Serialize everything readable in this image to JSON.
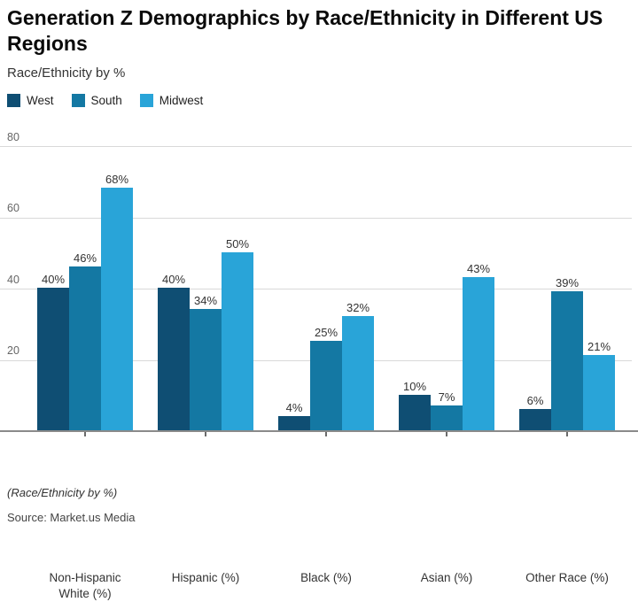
{
  "title": "Generation Z Demographics by Race/Ethnicity in Different US Regions",
  "subtitle": "Race/Ethnicity by %",
  "footnote": "(Race/Ethnicity by %)",
  "source": "Source: Market.us Media",
  "chart_data": {
    "type": "bar",
    "title": "Generation Z Demographics by Race/Ethnicity in Different US Regions",
    "categories": [
      "Non-Hispanic White (%)",
      "Hispanic (%)",
      "Black (%)",
      "Asian (%)",
      "Other Race (%)"
    ],
    "series": [
      {
        "name": "West",
        "color": "#0f4e73",
        "values": [
          40,
          40,
          4,
          10,
          6
        ]
      },
      {
        "name": "South",
        "color": "#1478a3",
        "values": [
          46,
          34,
          25,
          7,
          39
        ]
      },
      {
        "name": "Midwest",
        "color": "#29a4d8",
        "values": [
          68,
          50,
          32,
          43,
          21
        ]
      }
    ],
    "value_suffix": "%",
    "ylim": [
      0,
      80
    ],
    "yticks": [
      20,
      40,
      60,
      80
    ],
    "grid": true,
    "legend_position": "top-left",
    "colors": {
      "grid": "#d9d9d9",
      "axis": "#8a8a8a",
      "value_label": "#333333"
    }
  }
}
